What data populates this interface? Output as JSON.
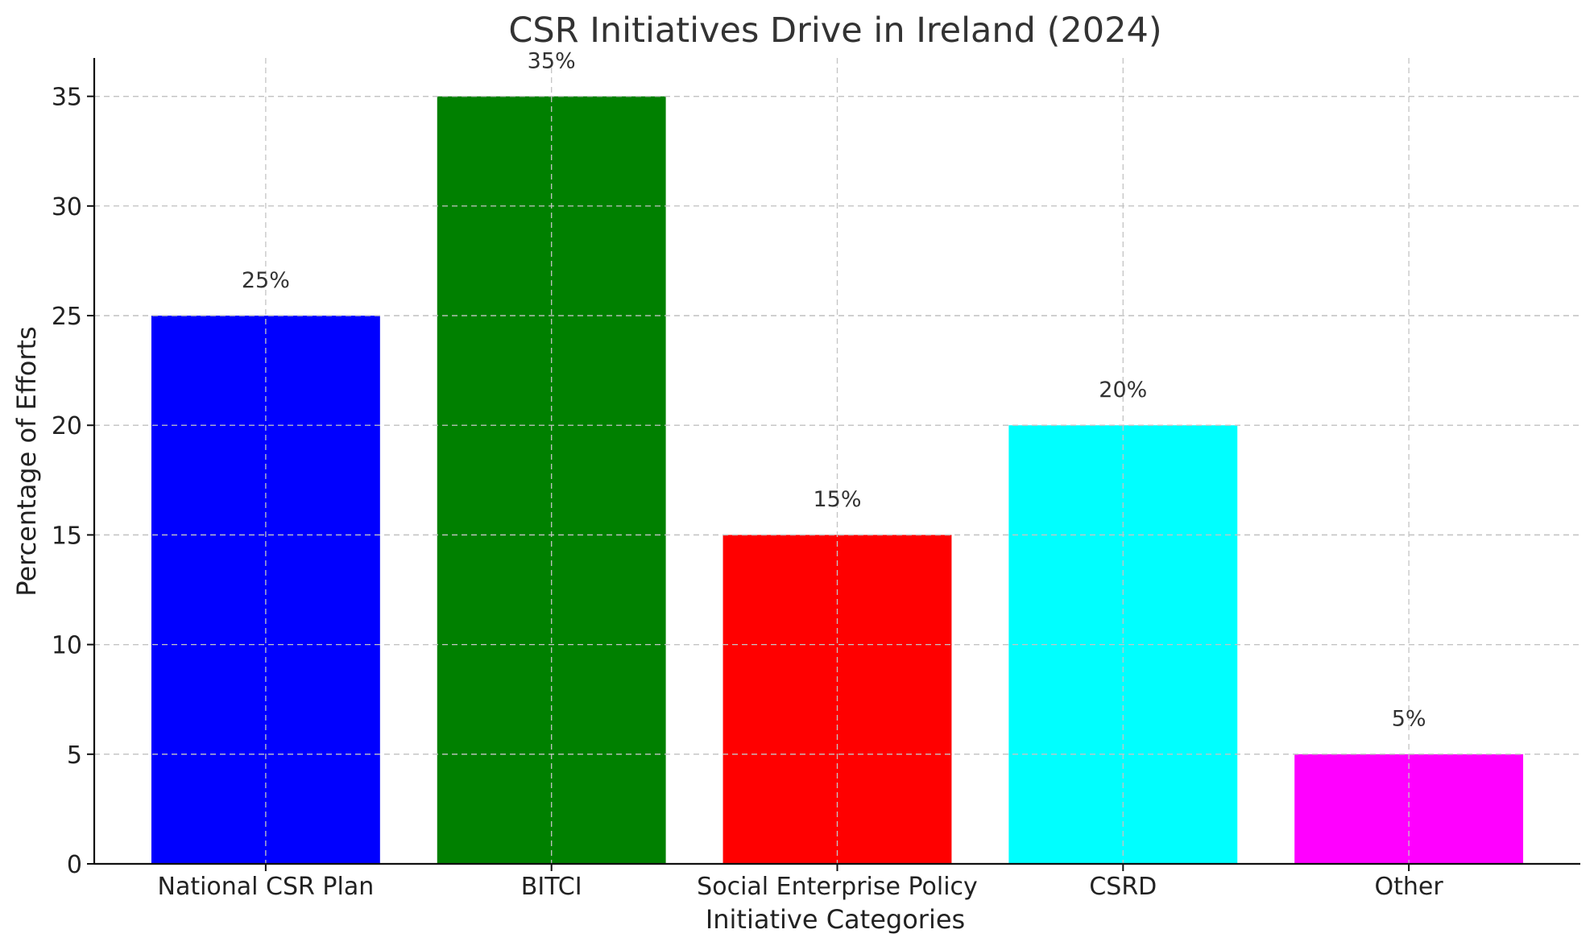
{
  "chart_data": {
    "type": "bar",
    "title": "CSR Initiatives Drive in Ireland (2024)",
    "xlabel": "Initiative Categories",
    "ylabel": "Percentage of Efforts",
    "categories": [
      "National CSR Plan",
      "BITCI",
      "Social Enterprise Policy",
      "CSRD",
      "Other"
    ],
    "values": [
      25,
      35,
      15,
      20,
      5
    ],
    "data_labels": [
      "25%",
      "35%",
      "15%",
      "20%",
      "5%"
    ],
    "colors": [
      "#0000ff",
      "#008000",
      "#ff0000",
      "#00ffff",
      "#ff00ff"
    ],
    "ylim": [
      0,
      36.75
    ],
    "yticks": [
      0,
      5,
      10,
      15,
      20,
      25,
      30,
      35
    ],
    "grid": true,
    "legend": "none"
  }
}
